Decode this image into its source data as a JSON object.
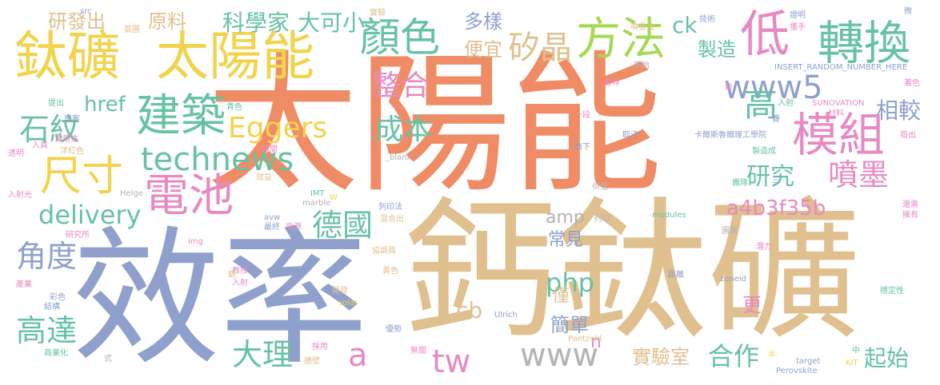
{
  "palette": {
    "orange": "#f08c65",
    "tan": "#e0c08e",
    "blue": "#8fa0cc",
    "green": "#66c2a5",
    "pink": "#e78ac3",
    "lime": "#a6d854",
    "yellow": "#f2d34c",
    "gray": "#b3b3b3"
  },
  "words": [
    {
      "text": "太陽能",
      "color": "orange"
    },
    {
      "text": "鈣鈦礦",
      "color": "tan"
    },
    {
      "text": "效率",
      "color": "blue"
    },
    {
      "text": "鈦礦",
      "color": "yellow"
    },
    {
      "text": "太陽能",
      "color": "yellow"
    },
    {
      "text": "顏色",
      "color": "green"
    },
    {
      "text": "方法",
      "color": "lime"
    },
    {
      "text": "低",
      "color": "pink"
    },
    {
      "text": "轉換",
      "color": "green"
    },
    {
      "text": "模組",
      "color": "pink"
    },
    {
      "text": "建築",
      "color": "green"
    },
    {
      "text": "電池",
      "color": "pink"
    },
    {
      "text": "尺寸",
      "color": "yellow"
    },
    {
      "text": "technews",
      "color": "green"
    },
    {
      "text": "石紋",
      "color": "green"
    },
    {
      "text": "Eggers",
      "color": "yellow"
    },
    {
      "text": "delivery",
      "color": "green"
    },
    {
      "text": "角度",
      "color": "blue"
    },
    {
      "text": "高達",
      "color": "green"
    },
    {
      "text": "大理",
      "color": "green"
    },
    {
      "text": "a",
      "color": "pink"
    },
    {
      "text": "tw",
      "color": "pink"
    },
    {
      "text": "www",
      "color": "gray"
    },
    {
      "text": "德國",
      "color": "green"
    },
    {
      "text": "研究",
      "color": "green"
    },
    {
      "text": "噴墨",
      "color": "pink"
    },
    {
      "text": "a4b3f35b",
      "color": "pink"
    },
    {
      "text": "php",
      "color": "green"
    },
    {
      "text": "amp",
      "color": "gray"
    },
    {
      "text": "成本",
      "color": "green"
    },
    {
      "text": "整合",
      "color": "pink"
    },
    {
      "text": "www5",
      "color": "blue"
    },
    {
      "text": "高",
      "color": "green"
    },
    {
      "text": "相較",
      "color": "blue"
    },
    {
      "text": "矽晶",
      "color": "tan"
    },
    {
      "text": "便宜",
      "color": "tan"
    },
    {
      "text": "多樣",
      "color": "blue"
    },
    {
      "text": "ck",
      "color": "green"
    },
    {
      "text": "製造",
      "color": "green"
    },
    {
      "text": "科學家",
      "color": "green"
    },
    {
      "text": "大可小",
      "color": "green"
    },
    {
      "text": "研發出",
      "color": "tan"
    },
    {
      "text": "原料",
      "color": "tan"
    },
    {
      "text": "href",
      "color": "green"
    },
    {
      "text": "常見",
      "color": "blue"
    },
    {
      "text": "僅",
      "color": "tan"
    },
    {
      "text": "簡單",
      "color": "blue"
    },
    {
      "text": "n",
      "color": "pink"
    },
    {
      "text": "cb",
      "color": "tan"
    },
    {
      "text": "實驗室",
      "color": "tan"
    },
    {
      "text": "合作",
      "color": "green"
    },
    {
      "text": "起始",
      "color": "green"
    },
    {
      "text": "更",
      "color": "pink"
    },
    {
      "text": "src",
      "color": "blue"
    },
    {
      "text": "首圖",
      "color": "tan"
    },
    {
      "text": "實驗",
      "color": "tan"
    },
    {
      "text": "噴墨法",
      "color": "tan"
    },
    {
      "text": "技術",
      "color": "blue"
    },
    {
      "text": "證明",
      "color": "blue"
    },
    {
      "text": "攜手",
      "color": "pink"
    },
    {
      "text": "微",
      "color": "blue"
    },
    {
      "text": "INSERT_RANDOM_NUMBER_HERE",
      "color": "blue"
    },
    {
      "text": "原始",
      "color": "gray"
    },
    {
      "text": "夥伴",
      "color": "pink"
    },
    {
      "text": "新",
      "color": "pink"
    },
    {
      "text": "著色",
      "color": "pink"
    },
    {
      "text": "入射",
      "color": "green"
    },
    {
      "text": "SUNOVATION",
      "color": "pink"
    },
    {
      "text": "材料",
      "color": "pink"
    },
    {
      "text": "提出",
      "color": "green"
    },
    {
      "text": "專案",
      "color": "blue"
    },
    {
      "text": "青色",
      "color": "green"
    },
    {
      "text": "實用性",
      "color": "pink"
    },
    {
      "text": "一段",
      "color": "pink"
    },
    {
      "text": "取決",
      "color": "blue"
    },
    {
      "text": "卡爾斯魯爾理工學院",
      "color": "blue"
    },
    {
      "text": "指出",
      "color": "pink"
    },
    {
      "text": "入員",
      "color": "pink"
    },
    {
      "text": "洋紅色",
      "color": "tan"
    },
    {
      "text": "透明",
      "color": "pink"
    },
    {
      "text": "時間",
      "color": "pink"
    },
    {
      "text": "旗下",
      "color": "blue"
    },
    {
      "text": "製造成",
      "color": "green"
    },
    {
      "text": "_blank'",
      "color": "gray"
    },
    {
      "text": "效益",
      "color": "tan"
    },
    {
      "text": "入射光",
      "color": "pink"
    },
    {
      "text": "Helge",
      "color": "gray"
    },
    {
      "text": "IMT",
      "color": "green"
    },
    {
      "text": "W",
      "color": "yellow"
    },
    {
      "text": "marble",
      "color": "gray"
    },
    {
      "text": "列印法",
      "color": "blue"
    },
    {
      "text": "供電",
      "color": "gray"
    },
    {
      "text": "團隊",
      "color": "green"
    },
    {
      "text": "還需",
      "color": "pink"
    },
    {
      "text": "avw",
      "color": "blue"
    },
    {
      "text": "最終",
      "color": "blue"
    },
    {
      "text": "來源",
      "color": "pink"
    },
    {
      "text": "混合出",
      "color": "tan"
    },
    {
      "text": "列印",
      "color": "gray"
    },
    {
      "text": "modules",
      "color": "green"
    },
    {
      "text": "擁有",
      "color": "pink"
    },
    {
      "text": "研究所",
      "color": "pink"
    },
    {
      "text": "img",
      "color": "pink"
    },
    {
      "text": "圖案",
      "color": "gray"
    },
    {
      "text": "潛力",
      "color": "pink"
    },
    {
      "text": "協調員",
      "color": "tan"
    },
    {
      "text": "教授",
      "color": "pink"
    },
    {
      "text": "入射",
      "color": "pink"
    },
    {
      "text": "產業",
      "color": "pink"
    },
    {
      "text": "黃色",
      "color": "tan"
    },
    {
      "text": "開發",
      "color": "tan"
    },
    {
      "text": "距離",
      "color": "blue"
    },
    {
      "text": "zoneid",
      "color": "blue"
    },
    {
      "text": "彩色",
      "color": "blue"
    },
    {
      "text": "結構",
      "color": "blue"
    },
    {
      "text": "solar",
      "color": "yellow"
    },
    {
      "text": "Ulrich",
      "color": "blue"
    },
    {
      "text": "穩定性",
      "color": "green"
    },
    {
      "text": "優勢",
      "color": "blue"
    },
    {
      "text": "Paetzold",
      "color": "tan"
    },
    {
      "text": "商業化",
      "color": "green"
    },
    {
      "text": "採用",
      "color": "pink"
    },
    {
      "text": "無關",
      "color": "pink"
    },
    {
      "text": "式",
      "color": "gray"
    },
    {
      "text": "牆壁",
      "color": "tan"
    },
    {
      "text": "target",
      "color": "blue"
    },
    {
      "text": "KIT",
      "color": "yellow"
    },
    {
      "text": "Perovskite",
      "color": "blue"
    },
    {
      "text": "半",
      "color": "yellow"
    },
    {
      "text": "中",
      "color": "green"
    },
    {
      "text": "斷",
      "color": "tan"
    },
    {
      "text": "三",
      "color": "blue"
    },
    {
      "text": "賽",
      "color": "blue"
    }
  ]
}
